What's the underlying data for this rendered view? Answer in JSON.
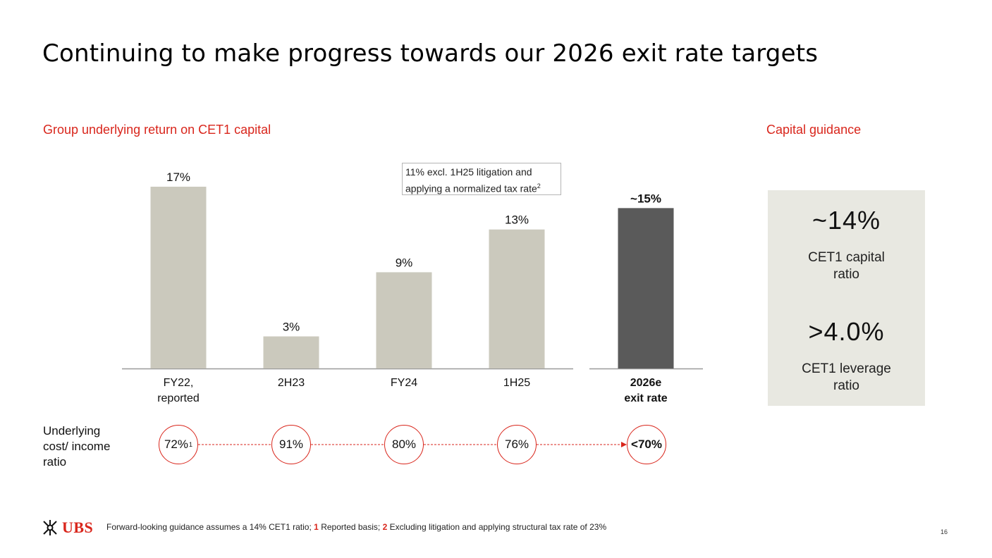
{
  "title": "Continuing to make progress towards our 2026 exit rate targets",
  "chart_section_label": "Group underlying return on CET1 capital",
  "guidance_section_label": "Capital guidance",
  "chart_data": {
    "type": "bar",
    "title": "Group underlying return on CET1 capital",
    "categories": [
      "FY22, reported",
      "2H23",
      "FY24",
      "1H25",
      "2026e exit rate"
    ],
    "category_lines": [
      [
        "FY22,",
        "reported"
      ],
      [
        "2H23"
      ],
      [
        "FY24"
      ],
      [
        "1H25"
      ],
      [
        "2026e",
        "exit rate"
      ]
    ],
    "values": [
      17,
      3,
      9,
      13,
      15
    ],
    "data_labels": [
      "17%",
      "3%",
      "9%",
      "13%",
      "~15%"
    ],
    "ylim": [
      0,
      17
    ],
    "xlabel": "",
    "ylabel": "",
    "colors": [
      "#cbc9bd",
      "#cbc9bd",
      "#cbc9bd",
      "#cbc9bd",
      "#5a5a5a"
    ],
    "annotation": {
      "line1": "11% excl. 1H25  litigation and",
      "line2": "applying a normalized tax rate",
      "sup": "2"
    }
  },
  "cost_income": {
    "title_lines": [
      "Underlying",
      "cost/ income",
      "ratio"
    ],
    "values": [
      "72%",
      "91%",
      "80%",
      "76%",
      "<70%"
    ],
    "first_sup": "1",
    "line_color": "#d9261c"
  },
  "guidance": {
    "items": [
      {
        "value": "~14%",
        "label_lines": [
          "CET1 capital",
          "ratio"
        ]
      },
      {
        "value": ">4.0%",
        "label_lines": [
          "CET1 leverage",
          "ratio"
        ]
      }
    ],
    "box_color": "#e8e8e1"
  },
  "footer": {
    "logo_text": "UBS",
    "note_prefix": "Forward-looking guidance assumes a 14% CET1 ratio;",
    "note1_num": "1",
    "note1_text": "Reported basis;",
    "note2_num": "2",
    "note2_text": "Excluding litigation and applying structural tax rate of 23%",
    "page_number": "16"
  },
  "colors": {
    "accent": "#d9261c",
    "bar_light": "#cbc9bd",
    "bar_dark": "#5a5a5a"
  }
}
